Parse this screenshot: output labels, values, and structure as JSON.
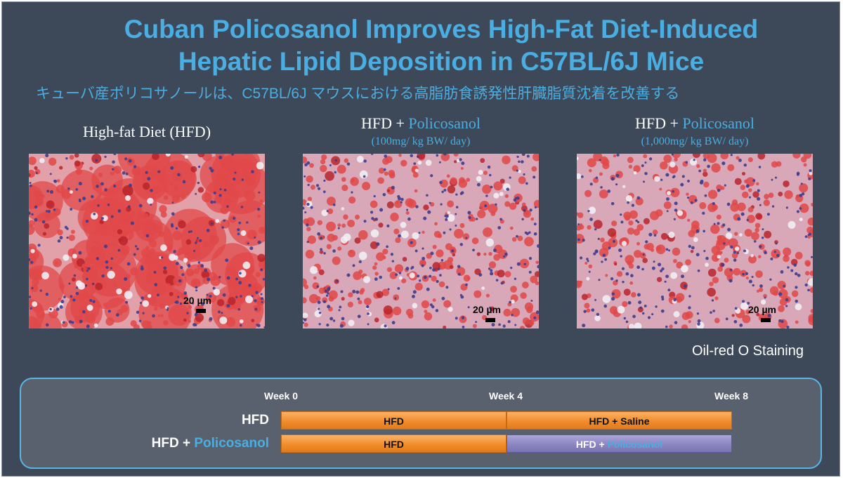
{
  "header": {
    "title_lines": [
      "Cuban Policosanol Improves High-Fat Diet-Induced",
      "Hepatic Lipid Deposition in C57BL/6J Mice"
    ],
    "subtitle": "キューバ産ポリコサノールは、C57BL/6J マウスにおける高脂肪食誘発性肝臓脂質沈着を改善する"
  },
  "panels": [
    {
      "label": [
        "High-fat Diet (HFD)"
      ],
      "scale_bar": "20 µm"
    },
    {
      "label": [
        "HFD +",
        "Policosanol"
      ],
      "dose": "(100mg/ kg BW/ day)",
      "scale_bar": "20 µm"
    },
    {
      "label": [
        "HFD +",
        "Policosanol"
      ],
      "dose": "(1,000mg/ kg BW/ day)",
      "scale_bar": "20 µm"
    }
  ],
  "stain_note": "Oil-red O Staining",
  "timeline": {
    "weeks": [
      "Week 0",
      "Week 4",
      "Week 8"
    ],
    "rows": [
      {
        "label": [
          "HFD"
        ],
        "segments": [
          [
            "HFD"
          ],
          [
            "HFD + Saline"
          ]
        ]
      },
      {
        "label": [
          "HFD +",
          "Policosanol"
        ],
        "segments": [
          [
            "HFD"
          ],
          [
            "HFD +",
            "Policosanol"
          ]
        ]
      }
    ]
  }
}
